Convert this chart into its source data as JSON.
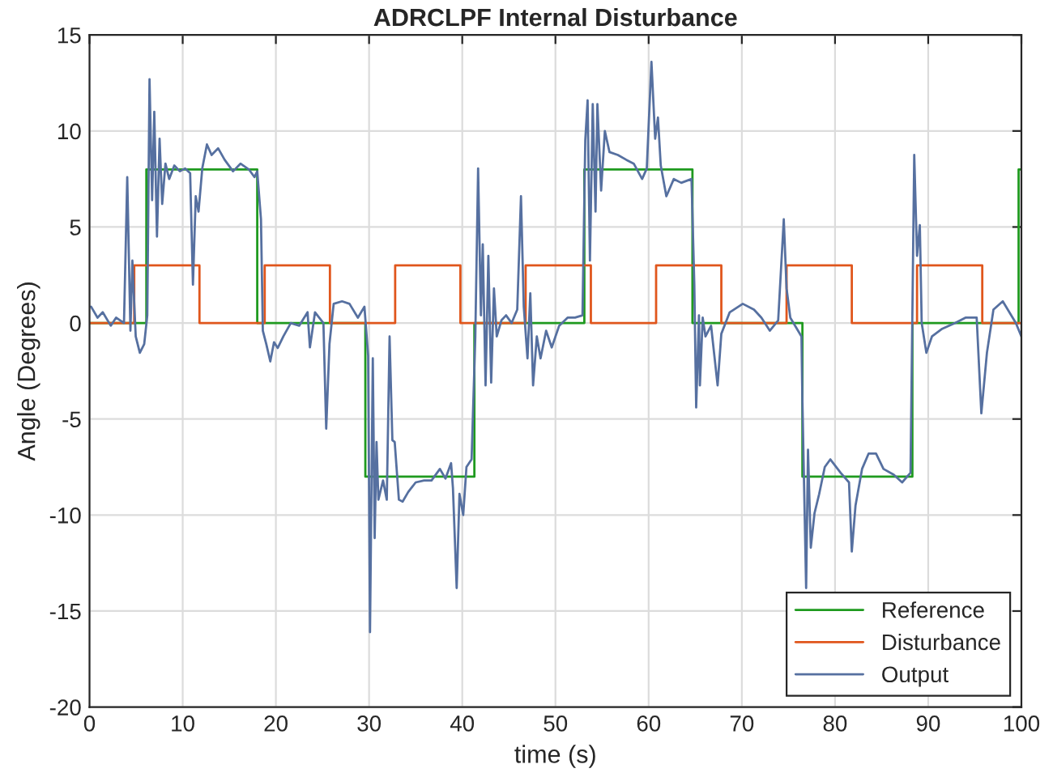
{
  "chart_data": {
    "type": "line",
    "title": "ADRCLPF Internal Disturbance",
    "xlabel": "time (s)",
    "ylabel": "Angle (Degrees)",
    "xlim": [
      0,
      100
    ],
    "xticks": [
      0,
      10,
      20,
      30,
      40,
      50,
      60,
      70,
      80,
      90,
      100
    ],
    "ylim": [
      -20,
      15
    ],
    "yticks": [
      -20,
      -15,
      -10,
      -5,
      0,
      5,
      10,
      15
    ],
    "grid": true,
    "legend": "bottom right",
    "line_style": "solid",
    "marker": "none",
    "series": [
      {
        "name": "Reference",
        "type": "step",
        "color": "#1f9a1f",
        "x": [
          0,
          6.1,
          18,
          29.6,
          41.3,
          53.1,
          64.7,
          76.5,
          88.3,
          99.7,
          100
        ],
        "values": [
          0,
          8,
          0,
          -8,
          0,
          8,
          0,
          -8,
          0,
          8,
          8
        ]
      },
      {
        "name": "Disturbance",
        "type": "step",
        "color": "#e0561c",
        "x": [
          0,
          4.8,
          11.8,
          18.8,
          25.8,
          32.8,
          39.8,
          46.8,
          53.8,
          60.8,
          67.8,
          74.8,
          81.8,
          88.8,
          95.8,
          100
        ],
        "values": [
          0,
          3,
          0,
          3,
          0,
          3,
          0,
          3,
          0,
          3,
          0,
          3,
          0,
          3,
          0,
          0
        ]
      },
      {
        "name": "Output",
        "color": "#5670a0",
        "x": [
          0.17,
          0.86,
          1.42,
          2.28,
          2.85,
          3.7,
          4.05,
          4.39,
          4.6,
          4.96,
          5.4,
          5.87,
          6.2,
          6.44,
          6.72,
          6.95,
          7.24,
          7.52,
          7.8,
          8.15,
          8.55,
          9.1,
          9.7,
          10.25,
          10.8,
          11.1,
          11.4,
          11.7,
          12.1,
          12.6,
          13.1,
          13.8,
          14.5,
          15.4,
          16.2,
          17.1,
          17.7,
          18.0,
          18.4,
          18.6,
          18.97,
          19.4,
          19.8,
          20.2,
          20.8,
          21.6,
          22.5,
          23.4,
          23.65,
          24.2,
          25.1,
          25.4,
          25.75,
          26.2,
          27.1,
          27.9,
          28.8,
          29.5,
          29.9,
          30.1,
          30.4,
          30.6,
          30.8,
          31.0,
          31.5,
          31.9,
          32.2,
          32.5,
          32.75,
          33.2,
          33.6,
          34.2,
          35.0,
          35.9,
          36.7,
          37.6,
          38.2,
          38.8,
          39.0,
          39.4,
          39.7,
          40.1,
          40.45,
          41.0,
          41.4,
          41.7,
          42.0,
          42.2,
          42.5,
          42.8,
          43.1,
          43.4,
          43.7,
          44.2,
          44.7,
          45.3,
          45.9,
          46.3,
          46.6,
          47.0,
          47.3,
          47.6,
          48.0,
          48.4,
          49.0,
          49.6,
          50.4,
          51.3,
          52.1,
          52.9,
          53.2,
          53.45,
          53.7,
          54.0,
          54.3,
          54.5,
          54.9,
          55.3,
          55.8,
          56.7,
          57.6,
          58.4,
          59.3,
          59.8,
          60.3,
          60.7,
          61.0,
          61.3,
          61.9,
          62.7,
          63.5,
          64.6,
          64.9,
          65.1,
          65.4,
          65.5,
          65.8,
          66.1,
          66.7,
          67.4,
          67.8,
          68.7,
          70.1,
          71.3,
          72.1,
          73.0,
          73.9,
          74.5,
          74.8,
          75.2,
          76.4,
          76.5,
          76.9,
          77.1,
          77.4,
          77.8,
          78.3,
          78.9,
          79.5,
          80.6,
          81.5,
          81.8,
          82.2,
          82.9,
          83.6,
          84.4,
          85.2,
          86.3,
          87.2,
          88.1,
          88.5,
          88.8,
          89.1,
          89.3,
          89.8,
          90.4,
          91.5,
          92.9,
          94.0,
          95.2,
          95.7,
          96.3,
          97.0,
          98.0,
          99.4,
          100
        ],
        "values": [
          0.85,
          0.28,
          0.56,
          -0.14,
          0.28,
          0,
          7.6,
          -0.4,
          3.25,
          -0.7,
          -1.55,
          -1.1,
          0.4,
          12.7,
          6.4,
          11.0,
          4.5,
          9.6,
          6.2,
          8.3,
          7.5,
          8.2,
          7.9,
          8.05,
          7.8,
          2.0,
          6.6,
          5.8,
          8.05,
          9.3,
          8.75,
          9.1,
          8.5,
          7.9,
          8.3,
          8.0,
          7.6,
          7.9,
          5.4,
          -0.4,
          -1.1,
          -2.0,
          -1.0,
          -1.3,
          -0.7,
          0,
          -0.14,
          0.56,
          -1.27,
          0.56,
          0,
          -5.5,
          -1.1,
          1.0,
          1.13,
          1.0,
          0.28,
          0.85,
          -1.7,
          -16.1,
          -1.84,
          -11.2,
          -6.2,
          -9.2,
          -8.2,
          -9.2,
          -0.7,
          -6.1,
          -6.2,
          -9.2,
          -9.3,
          -8.8,
          -8.3,
          -8.2,
          -8.2,
          -7.6,
          -8.1,
          -7.3,
          -8.6,
          -13.8,
          -8.9,
          -10.0,
          -7.5,
          -7.1,
          -0.7,
          8.05,
          0.4,
          4.1,
          -3.25,
          3.5,
          -3.1,
          1.8,
          -0.7,
          0.14,
          0.4,
          0,
          0.7,
          6.6,
          0.85,
          -1.84,
          1.55,
          -3.25,
          -0.7,
          -1.84,
          -0.4,
          -1.27,
          -0.14,
          0.28,
          0.28,
          0.4,
          9.5,
          11.6,
          3.25,
          11.4,
          5.8,
          11.4,
          6.9,
          10.0,
          8.9,
          8.75,
          8.5,
          8.3,
          7.5,
          8.05,
          13.6,
          9.6,
          10.7,
          8.2,
          6.6,
          7.5,
          7.3,
          7.5,
          2.0,
          -4.4,
          0.4,
          -3.25,
          0.28,
          -0.7,
          -0.14,
          -3.25,
          -0.56,
          0.56,
          1.0,
          0.7,
          0.28,
          -0.4,
          0.14,
          5.4,
          1.8,
          0.28,
          -0.7,
          -4.1,
          -13.8,
          -6.6,
          -11.7,
          -9.9,
          -8.9,
          -7.5,
          -7.1,
          -7.8,
          -8.3,
          -11.9,
          -9.5,
          -7.6,
          -6.8,
          -6.8,
          -7.6,
          -7.9,
          -8.3,
          -7.8,
          8.75,
          3.5,
          5.1,
          0,
          -1.55,
          -0.7,
          -0.3,
          0,
          0.28,
          0.28,
          -4.7,
          -1.55,
          0.7,
          1.13,
          0,
          -0.7
        ]
      }
    ]
  }
}
